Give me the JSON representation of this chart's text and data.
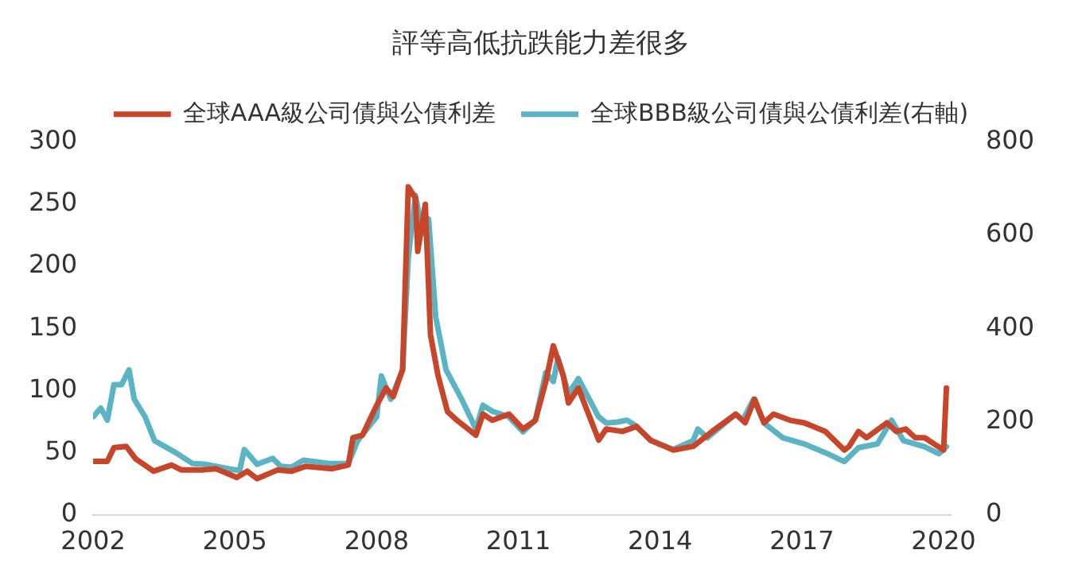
{
  "chart_data": {
    "type": "line",
    "title": "評等高低抗跌能力差很多",
    "legend": "top",
    "grid": false,
    "marker": "none",
    "line_style": "solid",
    "xlim": [
      2002,
      2020.15
    ],
    "xticks": [
      2002,
      2005,
      2008,
      2011,
      2014,
      2017,
      2020
    ],
    "ylim": [
      0,
      300
    ],
    "yticks": [
      0,
      50,
      100,
      150,
      200,
      250,
      300
    ],
    "y2lim": [
      0,
      800
    ],
    "y2ticks": [
      0,
      200,
      400,
      600,
      800
    ],
    "series": [
      {
        "name": "全球AAA級公司債與公債利差",
        "color": "#c8452a",
        "x": [
          2002.0,
          2002.3,
          2002.44,
          2002.7,
          2002.9,
          2003.28,
          2003.66,
          2003.87,
          2004.3,
          2004.6,
          2005.04,
          2005.26,
          2005.47,
          2005.9,
          2006.2,
          2006.5,
          2007.05,
          2007.4,
          2007.5,
          2007.7,
          2008.0,
          2008.2,
          2008.35,
          2008.55,
          2008.67,
          2008.82,
          2008.87,
          2009.03,
          2009.14,
          2009.3,
          2009.5,
          2009.7,
          2010.1,
          2010.25,
          2010.45,
          2010.8,
          2011.1,
          2011.36,
          2011.58,
          2011.74,
          2011.95,
          2012.06,
          2012.27,
          2012.7,
          2012.86,
          2013.2,
          2013.5,
          2013.8,
          2014.28,
          2014.7,
          2015.1,
          2015.6,
          2015.8,
          2016.0,
          2016.2,
          2016.4,
          2016.75,
          2017.05,
          2017.5,
          2017.9,
          2018.0,
          2018.2,
          2018.37,
          2018.8,
          2019.0,
          2019.2,
          2019.4,
          2019.6,
          2020.0,
          2020.06
        ],
        "values": [
          43,
          43,
          54,
          55,
          45,
          35,
          40,
          36,
          36,
          37,
          30,
          35,
          29,
          36,
          35,
          39,
          37,
          40,
          62,
          64,
          88,
          102,
          95,
          117,
          264,
          255,
          212,
          250,
          145,
          112,
          83,
          76,
          64,
          81,
          76,
          81,
          69,
          76,
          107,
          136,
          112,
          90,
          102,
          60,
          69,
          67,
          71,
          60,
          52,
          55,
          67,
          81,
          74,
          93,
          74,
          81,
          76,
          74,
          67,
          52,
          55,
          67,
          62,
          74,
          67,
          69,
          62,
          62,
          52,
          102
        ]
      },
      {
        "name": "全球BBB級公司債與公債利差(右軸)",
        "color": "#5ab4c4",
        "axis": "y2",
        "x": [
          2002.0,
          2002.16,
          2002.3,
          2002.44,
          2002.6,
          2002.76,
          2002.87,
          2003.1,
          2003.3,
          2003.75,
          2004.1,
          2004.4,
          2004.9,
          2005.1,
          2005.2,
          2005.47,
          2005.8,
          2005.97,
          2006.2,
          2006.45,
          2007.0,
          2007.4,
          2007.6,
          2008.0,
          2008.1,
          2008.3,
          2008.55,
          2008.67,
          2008.82,
          2008.98,
          2009.1,
          2009.25,
          2009.47,
          2009.8,
          2010.1,
          2010.25,
          2010.45,
          2010.8,
          2011.1,
          2011.36,
          2011.58,
          2011.74,
          2011.84,
          2012.06,
          2012.27,
          2012.7,
          2012.86,
          2013.1,
          2013.3,
          2013.5,
          2013.8,
          2014.28,
          2014.7,
          2014.8,
          2015.0,
          2015.6,
          2015.75,
          2015.98,
          2016.2,
          2016.6,
          2017.05,
          2017.5,
          2017.9,
          2018.2,
          2018.6,
          2018.9,
          2019.15,
          2019.6,
          2019.9,
          2020.06
        ],
        "values": [
          210,
          229,
          203,
          279,
          279,
          311,
          248,
          210,
          159,
          133,
          110,
          108,
          98,
          95,
          140,
          108,
          121,
          104,
          102,
          117,
          110,
          110,
          159,
          210,
          298,
          248,
          311,
          552,
          686,
          603,
          635,
          425,
          311,
          248,
          184,
          235,
          222,
          210,
          178,
          203,
          305,
          286,
          337,
          260,
          292,
          210,
          197,
          199,
          203,
          190,
          159,
          140,
          159,
          184,
          165,
          216,
          203,
          248,
          197,
          165,
          152,
          133,
          114,
          144,
          152,
          203,
          159,
          146,
          131,
          146
        ]
      }
    ]
  }
}
